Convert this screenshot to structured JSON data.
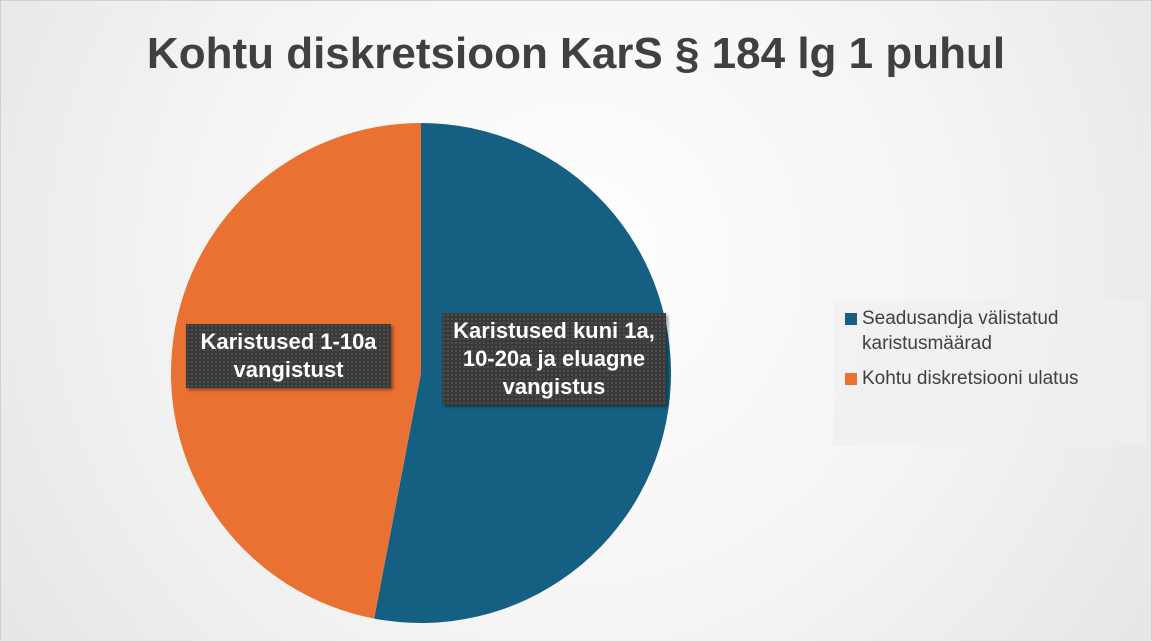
{
  "chart_data": {
    "type": "pie",
    "title": "Kohtu diskretsioon KarS § 184 lg 1 puhul",
    "categories": [
      "Seadusandja välistatud karistusmäärad",
      "Kohtu diskretsiooni ulatus"
    ],
    "values": [
      53,
      47
    ],
    "colors": [
      "#156082",
      "#e97132"
    ],
    "data_labels": [
      "Karistused kuni 1a, 10-20a ja eluagne vangistus",
      "Karistused 1-10a vangistust"
    ],
    "legend": "right"
  }
}
